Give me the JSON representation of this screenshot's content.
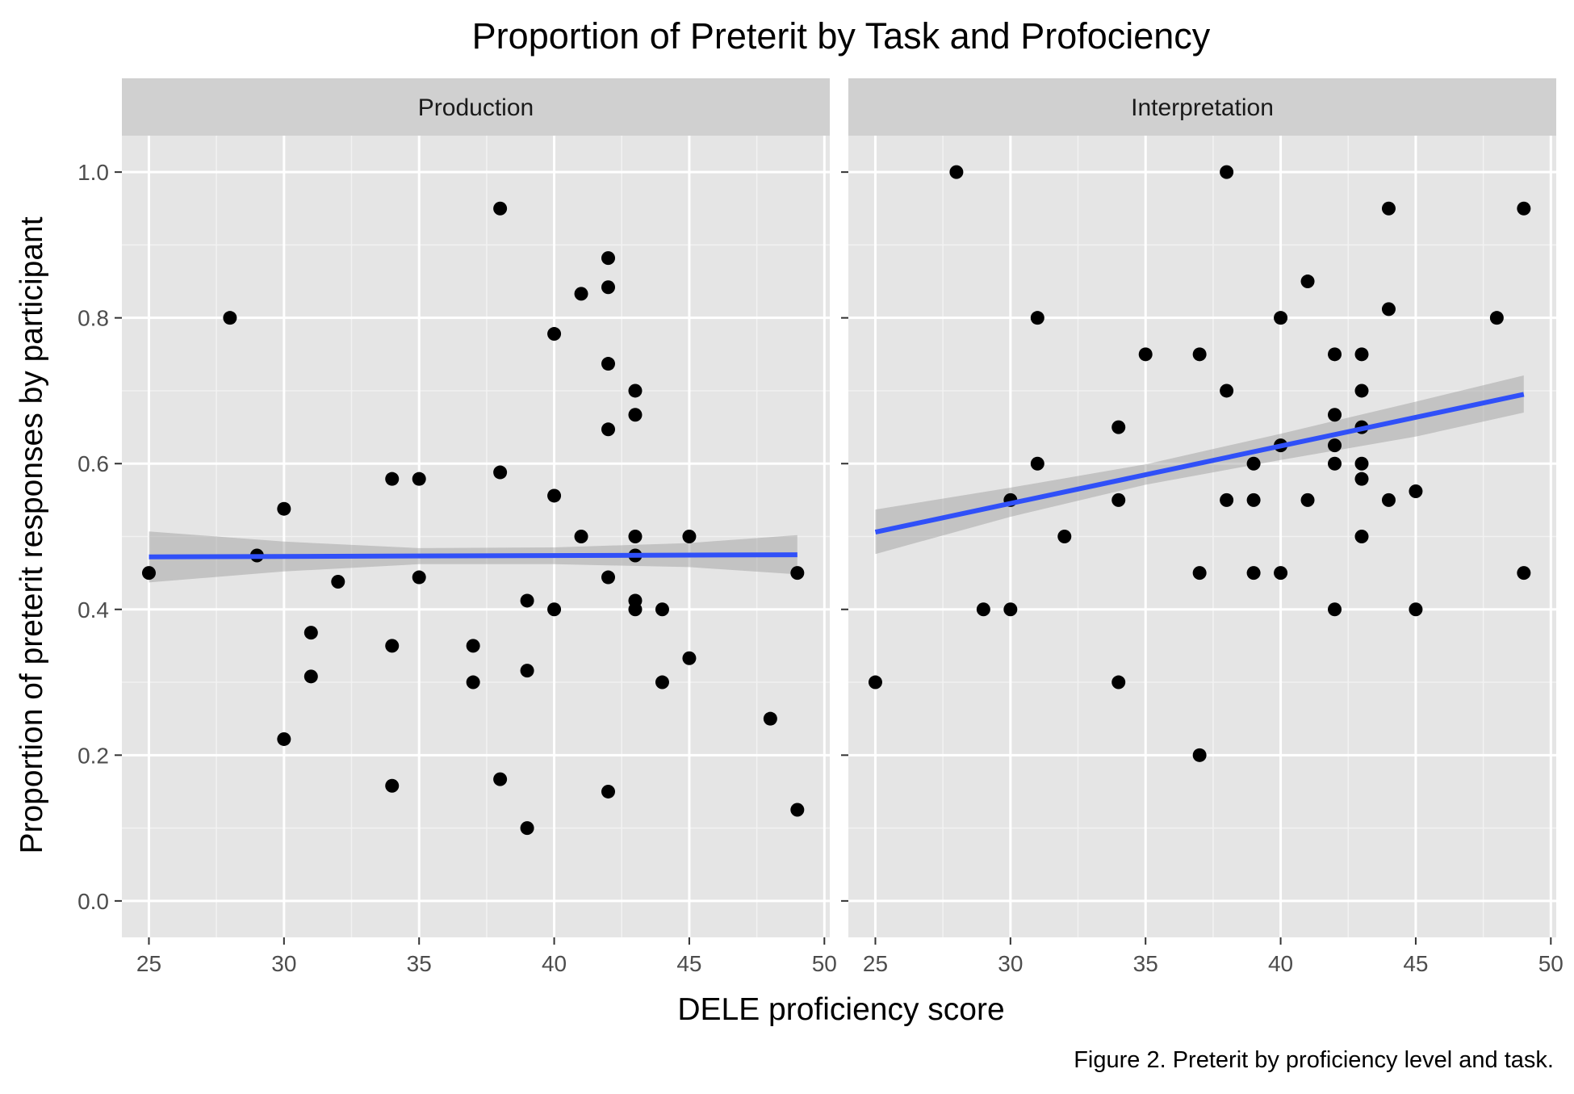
{
  "chart_data": {
    "type": "scatter",
    "title": "Proportion of Preterit by Task and Profociency",
    "xlabel": "DELE proficiency score",
    "ylabel": "Proportion of preterit responses by participant",
    "caption": "Figure 2. Preterit by proficiency level and task.",
    "xlim": [
      24,
      50.2
    ],
    "ylim": [
      -0.05,
      1.05
    ],
    "x_ticks": [
      25,
      30,
      35,
      40,
      45,
      50
    ],
    "y_ticks": [
      0.0,
      0.2,
      0.4,
      0.6,
      0.8,
      1.0
    ],
    "x_tick_labels": [
      "25",
      "30",
      "35",
      "40",
      "45",
      "50"
    ],
    "y_tick_labels": [
      "0.0",
      "0.2",
      "0.4",
      "0.6",
      "0.8",
      "1.0"
    ],
    "grid": true,
    "colors": {
      "points": "#000000",
      "fit_line": "#3050f8",
      "ci_band": "#999999",
      "panel_bg": "#e5e5e5",
      "strip_bg": "#d0d0d0"
    },
    "panels": [
      {
        "label": "Production",
        "points": [
          [
            25,
            0.45
          ],
          [
            28,
            0.8
          ],
          [
            29,
            0.474
          ],
          [
            30,
            0.538
          ],
          [
            30,
            0.222
          ],
          [
            31,
            0.368
          ],
          [
            31,
            0.308
          ],
          [
            32,
            0.438
          ],
          [
            34,
            0.579
          ],
          [
            34,
            0.35
          ],
          [
            34,
            0.158
          ],
          [
            35,
            0.579
          ],
          [
            35,
            0.444
          ],
          [
            37,
            0.35
          ],
          [
            37,
            0.3
          ],
          [
            38,
            0.95
          ],
          [
            38,
            0.588
          ],
          [
            38,
            0.167
          ],
          [
            39,
            0.412
          ],
          [
            39,
            0.316
          ],
          [
            39,
            0.1
          ],
          [
            40,
            0.778
          ],
          [
            40,
            0.556
          ],
          [
            40,
            0.4
          ],
          [
            41,
            0.833
          ],
          [
            41,
            0.5
          ],
          [
            42,
            0.882
          ],
          [
            42,
            0.842
          ],
          [
            42,
            0.737
          ],
          [
            42,
            0.647
          ],
          [
            42,
            0.444
          ],
          [
            42,
            0.15
          ],
          [
            43,
            0.7
          ],
          [
            43,
            0.667
          ],
          [
            43,
            0.5
          ],
          [
            43,
            0.474
          ],
          [
            43,
            0.412
          ],
          [
            43,
            0.4
          ],
          [
            44,
            0.4
          ],
          [
            44,
            0.3
          ],
          [
            45,
            0.5
          ],
          [
            45,
            0.333
          ],
          [
            48,
            0.25
          ],
          [
            49,
            0.45
          ],
          [
            49,
            0.125
          ]
        ],
        "fit": {
          "x": [
            25,
            49
          ],
          "y": [
            0.472,
            0.475
          ]
        },
        "ci": {
          "x": [
            25,
            30,
            35,
            40,
            45,
            49
          ],
          "lower": [
            0.437,
            0.452,
            0.462,
            0.462,
            0.458,
            0.448
          ],
          "upper": [
            0.507,
            0.493,
            0.484,
            0.485,
            0.491,
            0.502
          ]
        }
      },
      {
        "label": "Interpretation",
        "points": [
          [
            25,
            0.3
          ],
          [
            28,
            1.0
          ],
          [
            29,
            0.4
          ],
          [
            30,
            0.55
          ],
          [
            30,
            0.4
          ],
          [
            31,
            0.8
          ],
          [
            31,
            0.6
          ],
          [
            32,
            0.5
          ],
          [
            34,
            0.65
          ],
          [
            34,
            0.55
          ],
          [
            34,
            0.3
          ],
          [
            35,
            0.75
          ],
          [
            37,
            0.75
          ],
          [
            37,
            0.45
          ],
          [
            37,
            0.2
          ],
          [
            38,
            1.0
          ],
          [
            38,
            0.7
          ],
          [
            38,
            0.55
          ],
          [
            39,
            0.6
          ],
          [
            39,
            0.55
          ],
          [
            39,
            0.45
          ],
          [
            40,
            0.8
          ],
          [
            40,
            0.625
          ],
          [
            40,
            0.45
          ],
          [
            41,
            0.85
          ],
          [
            41,
            0.55
          ],
          [
            42,
            0.75
          ],
          [
            42,
            0.667
          ],
          [
            42,
            0.625
          ],
          [
            42,
            0.6
          ],
          [
            42,
            0.4
          ],
          [
            43,
            0.75
          ],
          [
            43,
            0.7
          ],
          [
            43,
            0.65
          ],
          [
            43,
            0.6
          ],
          [
            43,
            0.579
          ],
          [
            43,
            0.5
          ],
          [
            44,
            0.95
          ],
          [
            44,
            0.812
          ],
          [
            44,
            0.55
          ],
          [
            45,
            0.562
          ],
          [
            45,
            0.4
          ],
          [
            48,
            0.8
          ],
          [
            49,
            0.95
          ],
          [
            49,
            0.45
          ]
        ],
        "fit": {
          "x": [
            25,
            49
          ],
          "y": [
            0.506,
            0.695
          ]
        },
        "ci": {
          "x": [
            25,
            30,
            35,
            40,
            45,
            49
          ],
          "lower": [
            0.476,
            0.527,
            0.571,
            0.605,
            0.637,
            0.67
          ],
          "upper": [
            0.537,
            0.567,
            0.599,
            0.641,
            0.685,
            0.721
          ]
        }
      }
    ]
  }
}
